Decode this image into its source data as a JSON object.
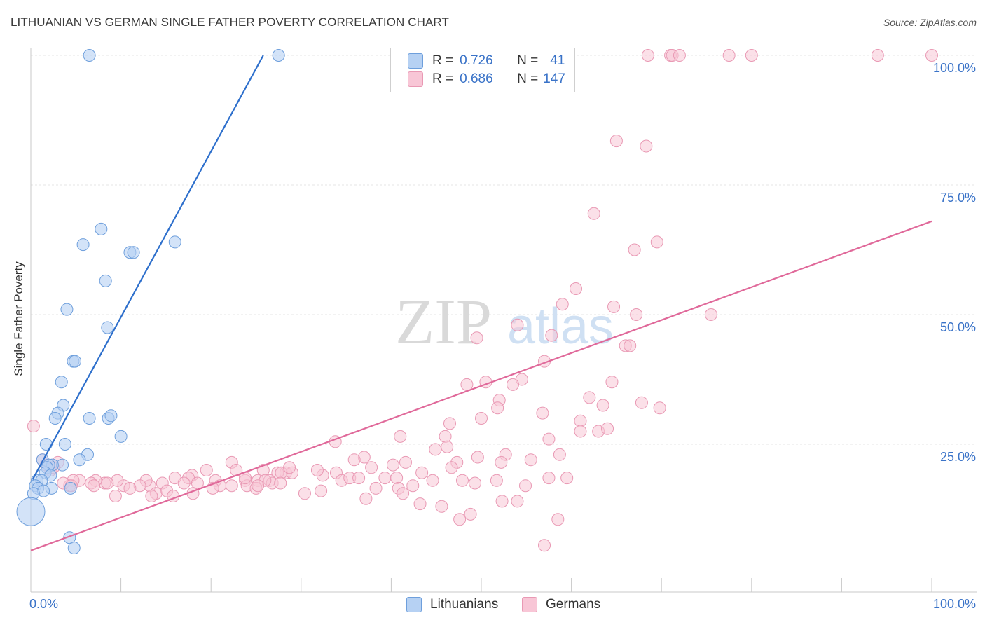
{
  "title": "LITHUANIAN VS GERMAN SINGLE FATHER POVERTY CORRELATION CHART",
  "source": "Source: ZipAtlas.com",
  "watermark": {
    "zip": "ZIP",
    "atlas": "atlas"
  },
  "legend": {
    "rows": [
      {
        "r_label": "R =",
        "r_value": "0.726",
        "n_label": "N =",
        "n_value": "41"
      },
      {
        "r_label": "R =",
        "r_value": "0.686",
        "n_label": "N =",
        "n_value": "147"
      }
    ]
  },
  "chart_data": {
    "type": "scatter",
    "title": "LITHUANIAN VS GERMAN SINGLE FATHER POVERTY CORRELATION CHART",
    "xlabel": "",
    "ylabel": "Single Father Poverty",
    "xlim": [
      0,
      100
    ],
    "ylim": [
      0,
      100
    ],
    "x_tick_labels": [
      "0.0%",
      "100.0%"
    ],
    "y_tick_labels": [
      {
        "value": 25,
        "label": "25.0%"
      },
      {
        "value": 50,
        "label": "50.0%"
      },
      {
        "value": 75,
        "label": "75.0%"
      },
      {
        "value": 100,
        "label": "100.0%"
      }
    ],
    "grid": true,
    "colors": {
      "lithuanians_fill": "#b6d1f3",
      "lithuanians_stroke": "#6e9fdc",
      "lithuanians_line": "#2d6fcc",
      "germans_fill": "#f8c6d6",
      "germans_stroke": "#e999b4",
      "germans_line": "#e0699a"
    },
    "series": [
      {
        "name": "Lithuanians",
        "r": 0.726,
        "n": 41,
        "trend": {
          "x": [
            0.2,
            25.8
          ],
          "y": [
            18.2,
            100
          ]
        },
        "points": [
          [
            6.5,
            100
          ],
          [
            27.5,
            100
          ],
          [
            7.8,
            66.5
          ],
          [
            5.8,
            63.5
          ],
          [
            16,
            64
          ],
          [
            11,
            62
          ],
          [
            11.4,
            62
          ],
          [
            8.3,
            56.5
          ],
          [
            4,
            51
          ],
          [
            8.5,
            47.5
          ],
          [
            4.7,
            41
          ],
          [
            4.9,
            41
          ],
          [
            3.4,
            37
          ],
          [
            3.6,
            32.5
          ],
          [
            3,
            31
          ],
          [
            2.7,
            30
          ],
          [
            6.5,
            30
          ],
          [
            8.6,
            30
          ],
          [
            8.9,
            30.5
          ],
          [
            10,
            26.5
          ],
          [
            1.7,
            25
          ],
          [
            3.8,
            25
          ],
          [
            6.3,
            23
          ],
          [
            1.3,
            22
          ],
          [
            5.4,
            22
          ],
          [
            3.5,
            21
          ],
          [
            2.4,
            21
          ],
          [
            2,
            21
          ],
          [
            1.8,
            20.5
          ],
          [
            1.6,
            19.5
          ],
          [
            2.2,
            19
          ],
          [
            0.7,
            18
          ],
          [
            1.2,
            18
          ],
          [
            0.5,
            17
          ],
          [
            0.8,
            16.5
          ],
          [
            2.3,
            16.5
          ],
          [
            4.4,
            16.5
          ],
          [
            1.4,
            16
          ],
          [
            0.3,
            15.5
          ],
          [
            4.3,
            7
          ],
          [
            4.8,
            5
          ]
        ]
      },
      {
        "name": "Germans",
        "r": 0.686,
        "n": 147,
        "trend": {
          "x": [
            0,
            100
          ],
          "y": [
            4.5,
            68
          ]
        },
        "points": [
          [
            68.5,
            100
          ],
          [
            71,
            100
          ],
          [
            71.2,
            100
          ],
          [
            72,
            100
          ],
          [
            77.5,
            100
          ],
          [
            80,
            100
          ],
          [
            94,
            100
          ],
          [
            100,
            100
          ],
          [
            65,
            83.5
          ],
          [
            68.3,
            82.5
          ],
          [
            62.5,
            69.5
          ],
          [
            69.5,
            64
          ],
          [
            67,
            62.5
          ],
          [
            60.5,
            55
          ],
          [
            59,
            52
          ],
          [
            64.7,
            51.5
          ],
          [
            67.2,
            50
          ],
          [
            75.5,
            50
          ],
          [
            54,
            48
          ],
          [
            57.8,
            46
          ],
          [
            49.5,
            45.5
          ],
          [
            66,
            44
          ],
          [
            66.5,
            44
          ],
          [
            57,
            41
          ],
          [
            54.5,
            37.5
          ],
          [
            50.5,
            37
          ],
          [
            53.5,
            36.5
          ],
          [
            48.4,
            36.5
          ],
          [
            64.5,
            37
          ],
          [
            62,
            34
          ],
          [
            52,
            33.5
          ],
          [
            63.5,
            32.5
          ],
          [
            67.8,
            33
          ],
          [
            69.8,
            32
          ],
          [
            51.8,
            32
          ],
          [
            56.8,
            31
          ],
          [
            50,
            30
          ],
          [
            61,
            29.5
          ],
          [
            61,
            27.5
          ],
          [
            63,
            27.5
          ],
          [
            64,
            28
          ],
          [
            46.5,
            29
          ],
          [
            46,
            26.5
          ],
          [
            41,
            26.5
          ],
          [
            33.8,
            25.5
          ],
          [
            57.5,
            26
          ],
          [
            46.2,
            24.5
          ],
          [
            44.9,
            24
          ],
          [
            58.7,
            23
          ],
          [
            52.7,
            23
          ],
          [
            49.6,
            22.5
          ],
          [
            37,
            22.5
          ],
          [
            55.5,
            22
          ],
          [
            35.9,
            22
          ],
          [
            52.2,
            21.5
          ],
          [
            41.6,
            21.5
          ],
          [
            47.3,
            21.5
          ],
          [
            40.2,
            21
          ],
          [
            37.8,
            20.5
          ],
          [
            46.7,
            20.5
          ],
          [
            43.4,
            19.5
          ],
          [
            33.9,
            19.5
          ],
          [
            32.4,
            19
          ],
          [
            31.8,
            20
          ],
          [
            28.3,
            19.5
          ],
          [
            29,
            19.5
          ],
          [
            25.8,
            20
          ],
          [
            27.4,
            19.5
          ],
          [
            27.8,
            19.5
          ],
          [
            28.7,
            20.5
          ],
          [
            22.3,
            21.5
          ],
          [
            19.5,
            20
          ],
          [
            22.8,
            20
          ],
          [
            17.9,
            19
          ],
          [
            16,
            18.5
          ],
          [
            17.5,
            18.5
          ],
          [
            20.5,
            18
          ],
          [
            23.8,
            18
          ],
          [
            25.2,
            18
          ],
          [
            26.5,
            18
          ],
          [
            17,
            17.5
          ],
          [
            14.6,
            17.5
          ],
          [
            18.5,
            17.5
          ],
          [
            21,
            17
          ],
          [
            24,
            17
          ],
          [
            26.8,
            17.5
          ],
          [
            27.7,
            17.5
          ],
          [
            34.5,
            18
          ],
          [
            35.4,
            18.5
          ],
          [
            36.4,
            18.5
          ],
          [
            39.3,
            18.5
          ],
          [
            40.6,
            18.5
          ],
          [
            44.6,
            18
          ],
          [
            47.9,
            18
          ],
          [
            49.3,
            17.5
          ],
          [
            51.7,
            18
          ],
          [
            57.5,
            18.5
          ],
          [
            59.5,
            18.5
          ],
          [
            54.9,
            17
          ],
          [
            42.4,
            17
          ],
          [
            40.8,
            16.5
          ],
          [
            38.3,
            16.5
          ],
          [
            25,
            16.5
          ],
          [
            20.2,
            16.5
          ],
          [
            13.2,
            17
          ],
          [
            12.8,
            18
          ],
          [
            13.9,
            15.5
          ],
          [
            15.1,
            16
          ],
          [
            15.8,
            15
          ],
          [
            12.1,
            17
          ],
          [
            10.3,
            17
          ],
          [
            9.6,
            18
          ],
          [
            8.2,
            17.5
          ],
          [
            7.2,
            18
          ],
          [
            6.7,
            17.5
          ],
          [
            5.4,
            18
          ],
          [
            4.7,
            18
          ],
          [
            4.3,
            17
          ],
          [
            3.6,
            17.5
          ],
          [
            4.5,
            17
          ],
          [
            3,
            21.5
          ],
          [
            2.2,
            20
          ],
          [
            1.3,
            22
          ],
          [
            0.3,
            28.5
          ],
          [
            1.7,
            21
          ],
          [
            2.5,
            20.5
          ],
          [
            7,
            17
          ],
          [
            8.5,
            17.5
          ],
          [
            9.4,
            15
          ],
          [
            11,
            16.5
          ],
          [
            13.4,
            15
          ],
          [
            18,
            15.5
          ],
          [
            22.3,
            17
          ],
          [
            30.4,
            15.5
          ],
          [
            32.2,
            16
          ],
          [
            37.2,
            14.5
          ],
          [
            41.3,
            15.5
          ],
          [
            43.2,
            13.5
          ],
          [
            45.6,
            13
          ],
          [
            52.3,
            14
          ],
          [
            48.8,
            11.5
          ],
          [
            47.6,
            10.5
          ],
          [
            54,
            14
          ],
          [
            58.5,
            10.5
          ],
          [
            57,
            5.5
          ],
          [
            23.8,
            18.5
          ],
          [
            26,
            18
          ],
          [
            25.2,
            17
          ]
        ]
      }
    ]
  },
  "bottom_legend": [
    "Lithuanians",
    "Germans"
  ]
}
